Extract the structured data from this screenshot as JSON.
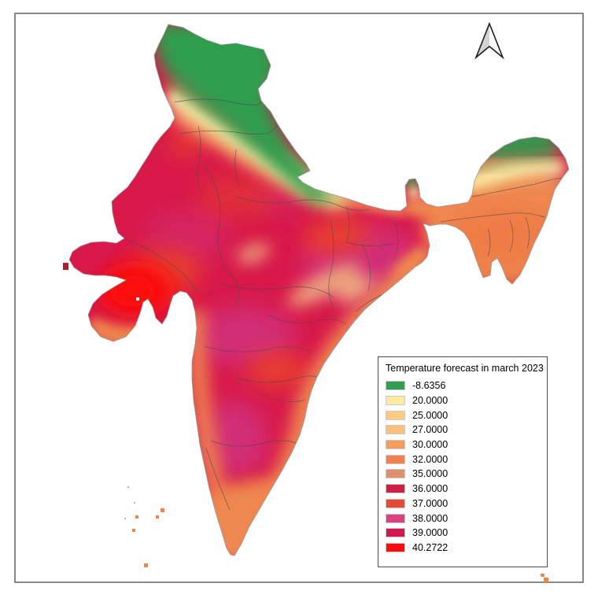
{
  "map": {
    "region": "india-temperature-raster",
    "palette": {
      "green_dark": "#2e9d4e",
      "green_light": "#8cc063",
      "yellow": "#f7eca0",
      "cream": "#fdf3b3",
      "orange_light": "#f5a35e",
      "orange": "#ee8750",
      "orange_deep": "#ef7a45",
      "salmon": "#eda87e",
      "salmon_light": "#f0b183",
      "crimson": "#d8194a",
      "red": "#e8402d",
      "magenta": "#d12f77",
      "hot_red": "#fb0b10",
      "dark_red": "#a3242b",
      "island_orange": "#e98648",
      "speck_gray": "#b5b5b5",
      "boundary": "#4a4a4a",
      "coastline": "#9a9a9a",
      "frame": "#6a6a6a",
      "arrow_left": "#d2d2d2",
      "arrow_right": "#fcfcfc",
      "arrow_stroke": "#1c1c1c"
    }
  },
  "legend": {
    "title": "Temperature forecast in march 2023",
    "items": [
      {
        "label": "-8.6356",
        "color": "#2f9e50"
      },
      {
        "label": "20.0000",
        "color": "#fde9a0"
      },
      {
        "label": "25.0000",
        "color": "#fcca80"
      },
      {
        "label": "27.0000",
        "color": "#fbc07a"
      },
      {
        "label": "30.0000",
        "color": "#f79b5c"
      },
      {
        "label": "32.0000",
        "color": "#f2814d"
      },
      {
        "label": "35.0000",
        "color": "#e28f6c"
      },
      {
        "label": "36.0000",
        "color": "#cf1d48"
      },
      {
        "label": "37.0000",
        "color": "#e84a35"
      },
      {
        "label": "38.0000",
        "color": "#dc4181"
      },
      {
        "label": "39.0000",
        "color": "#d01751"
      },
      {
        "label": "40.2722",
        "color": "#fb0d12"
      }
    ]
  },
  "north_arrow": {
    "name": "north-arrow"
  }
}
